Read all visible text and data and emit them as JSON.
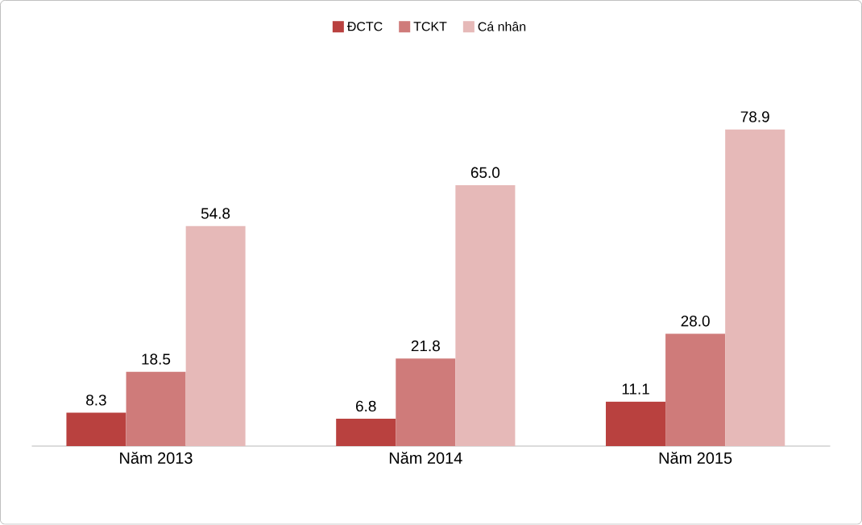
{
  "chart_data": {
    "type": "bar",
    "categories": [
      "Năm 2013",
      "Năm 2014",
      "Năm 2015"
    ],
    "series": [
      {
        "name": "ĐCTC",
        "color": "#b9413f",
        "values": [
          8.3,
          6.8,
          11.1
        ],
        "value_labels": [
          "8.3",
          "6.8",
          "11.1"
        ]
      },
      {
        "name": "TCKT",
        "color": "#cf7b7a",
        "values": [
          18.5,
          21.8,
          28.0
        ],
        "value_labels": [
          "18.5",
          "21.8",
          "28.0"
        ]
      },
      {
        "name": "Cá nhân",
        "color": "#e6b9b8",
        "values": [
          54.8,
          65.0,
          78.9
        ],
        "value_labels": [
          "54.8",
          "65.0",
          "78.9"
        ]
      }
    ],
    "legend": "top"
  }
}
